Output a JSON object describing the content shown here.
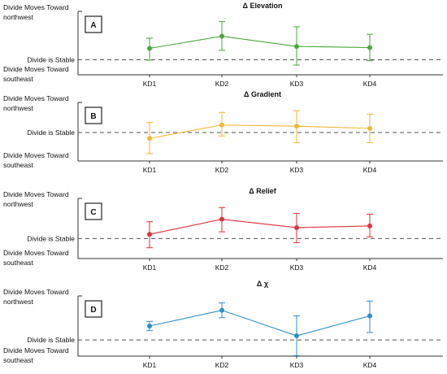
{
  "labels": {
    "northwest_line1": "Divide Moves Toward",
    "northwest_line2": "northwest",
    "stable": "Divide is Stable",
    "southeast_line1": "Divide Moves Toward",
    "southeast_line2": "southeast"
  },
  "chart_data": [
    {
      "type": "line",
      "panel": "A",
      "title": "Δ Elevation",
      "color": "#4aa83a",
      "categories": [
        "KD1",
        "KD2",
        "KD3",
        "KD4"
      ],
      "values": [
        0.58,
        1.2,
        0.68,
        0.62
      ],
      "err_low": [
        -0.02,
        0.48,
        -0.27,
        -0.05
      ],
      "err_high": [
        1.1,
        1.95,
        1.68,
        1.3
      ],
      "stable_level": 0,
      "ylim": [
        -0.6,
        2.3
      ]
    },
    {
      "type": "line",
      "panel": "B",
      "title": "Δ Gradient",
      "color": "#f0b731",
      "categories": [
        "KD1",
        "KD2",
        "KD3",
        "KD4"
      ],
      "values": [
        -0.35,
        0.45,
        0.38,
        0.25
      ],
      "err_low": [
        -1.25,
        -0.2,
        -0.6,
        -0.6
      ],
      "err_high": [
        0.6,
        1.2,
        1.3,
        1.1
      ],
      "stable_level": 0,
      "ylim": [
        -1.5,
        1.6
      ]
    },
    {
      "type": "line",
      "panel": "C",
      "title": "Δ Relief",
      "color": "#e2323a",
      "categories": [
        "KD1",
        "KD2",
        "KD3",
        "KD4"
      ],
      "values": [
        0.25,
        1.15,
        0.65,
        0.75
      ],
      "err_low": [
        -0.55,
        0.4,
        -0.25,
        0.1
      ],
      "err_high": [
        1.0,
        1.85,
        1.5,
        1.45
      ],
      "stable_level": 0,
      "ylim": [
        -1.0,
        2.2
      ]
    },
    {
      "type": "line",
      "panel": "D",
      "title": "Δ χ",
      "color": "#2d8fc8",
      "categories": [
        "KD1",
        "KD2",
        "KD3",
        "KD4"
      ],
      "values": [
        0.75,
        1.6,
        0.22,
        1.3
      ],
      "err_low": [
        0.5,
        1.2,
        -0.85,
        0.4
      ],
      "err_high": [
        1.0,
        2.0,
        1.3,
        2.1
      ],
      "stable_level": 0,
      "ylim": [
        -0.7,
        2.2
      ]
    }
  ]
}
